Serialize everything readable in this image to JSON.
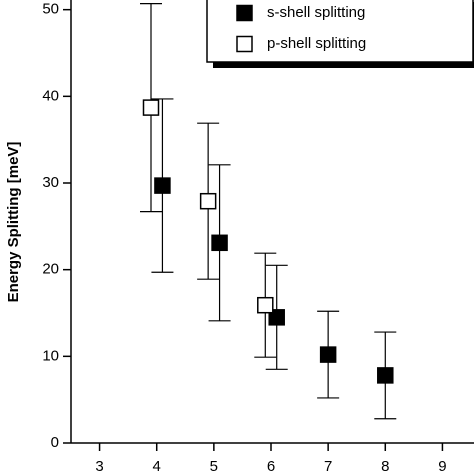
{
  "chart_data": {
    "type": "scatter",
    "ylabel": "Energy Splitting [meV]",
    "xlim": [
      2.5,
      9.5
    ],
    "ylim": [
      0,
      51
    ],
    "xticks": [
      3,
      4,
      5,
      6,
      7,
      8,
      9
    ],
    "yticks": [
      0,
      10,
      20,
      30,
      40,
      50
    ],
    "legend": "upper right",
    "series": [
      {
        "name": "s-shell splitting",
        "color": "#000000",
        "filled": true,
        "x": [
          4.1,
          5.1,
          6.1,
          7,
          8
        ],
        "values": [
          29.7,
          23.1,
          14.5,
          10.2,
          7.8
        ],
        "errors": [
          10,
          9,
          6,
          5,
          5
        ]
      },
      {
        "name": "p-shell splitting",
        "color": "#000000",
        "filled": false,
        "x": [
          3.9,
          4.9,
          5.9
        ],
        "values": [
          38.7,
          27.9,
          15.9
        ],
        "errors": [
          12,
          9,
          6
        ]
      }
    ]
  }
}
